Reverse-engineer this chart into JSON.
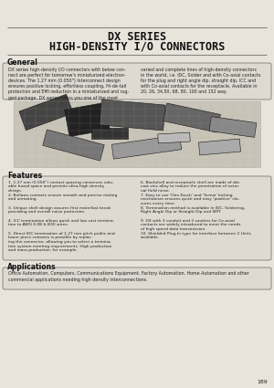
{
  "title_line1": "DX SERIES",
  "title_line2": "HIGH-DENSITY I/O CONNECTORS",
  "page_bg": "#e8e4dc",
  "title_color": "#111111",
  "section_header_color": "#111111",
  "body_text_color": "#222222",
  "line_color": "#888880",
  "box_edge_color": "#888880",
  "box_face_color": "#dedad2",
  "page_number": "189",
  "general_title": "General",
  "general_text_col1": "DX series high-density I/O connectors with below con-\nnect are perfect for tomorrow's miniaturized electron-\ndevices. The 1.27 mm (0.050\") Interconnect design\nensures positive locking, effortless coupling, Hi-de-tail\nprotection and EMI reduction in a miniaturized and rug-\nged package. DX series offers you one of the most",
  "general_text_col2": "varied and complete lines of high-density connectors\nin the world, i.e. IDC, Solder and with Co-axial contacts\nfor the plug and right angle dip, straight dip, ICC and\nwith Co-axial contacts for the receptacle. Available in\n20, 26, 34,50, 68, 80, 100 and 152 way.",
  "features_title": "Features",
  "features_col1": [
    "1.27 mm (0.050\") contact spacing conserves valu-\nable board space and permits ultra-high density\ndesign.",
    "Bellows contacts ensure smooth and precise mating\nand unmating.",
    "Unique shell design assures first mate/last break\nproviding and overall noise protection.",
    "ICC termination allows quick and low cost termina-\ntion to AWG 0.08 & B30 wires.",
    "Direct IDC termination of 1.27 mm pitch public and\nlower piece contacts is possible by replac-\ning the connector, allowing you to select a termina-\ntion system meeting requirements. High production\nand mass production, for example."
  ],
  "features_col2": [
    "Backshell and receptacle shell are made of die-\ncast zinc alloy to reduce the penetration of exter-\nnal field noise.",
    "Easy to use 'One-Touch' and 'Screw' locking\nmechanism ensures quick and easy 'positive' clo-\nsures every time.",
    "Termination method is available in IDC, Soldering,\nRight Angle Dip or Straight Dip and SMT.",
    "DX with 3 conduit and 3 cavities for Co-axial\ncontacts are widely introduced to meet the needs\nof high speed data transmission.",
    "Shielded Plug-In type for interface between 2 Units\navailable."
  ],
  "applications_title": "Applications",
  "applications_text": "Office Automation, Computers, Communications Equipment, Factory Automation, Home Automation and other\ncommercial applications needing high density interconnections."
}
